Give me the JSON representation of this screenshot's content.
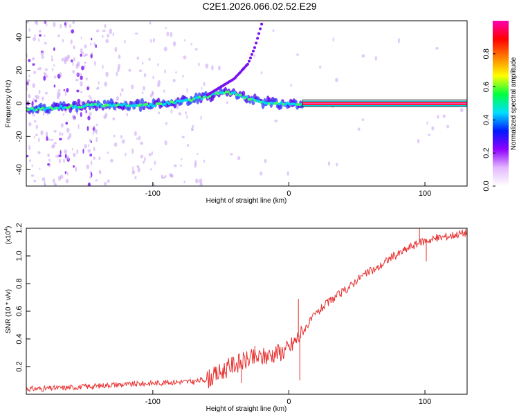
{
  "title": "C2E1.2026.066.02.52.E29",
  "chart_data": [
    {
      "type": "heatmap",
      "xlabel": "Height of straight line (km)",
      "ylabel": "Frequency (Hz)",
      "xlim": [
        -193,
        131
      ],
      "ylim": [
        -50,
        50
      ],
      "xticks": [
        -100,
        0,
        100
      ],
      "xtick_labels": [
        "-100",
        "0",
        "100"
      ],
      "yticks": [
        -40,
        -20,
        0,
        20,
        40
      ],
      "ytick_labels": [
        "-40",
        "-20",
        "0",
        "20",
        "40"
      ],
      "ridge": {
        "x": [
          -193,
          -180,
          -160,
          -140,
          -120,
          -100,
          -80,
          -60,
          -50,
          -40,
          -30,
          -20,
          -10,
          0,
          10,
          131
        ],
        "y": [
          -4,
          -3,
          -2,
          -1,
          -1,
          -1,
          1,
          4,
          7,
          6,
          3,
          1,
          0,
          0,
          0,
          0
        ]
      },
      "branch": {
        "x": [
          -60,
          -50,
          -40,
          -30,
          -25,
          -20
        ],
        "y": [
          5,
          10,
          15,
          24,
          34,
          48
        ]
      },
      "colorbar": {
        "label": "Normalized spectral amplitude",
        "ticks": [
          0,
          0.2,
          0.4,
          0.6,
          0.8
        ],
        "tick_labels": [
          "0.0",
          "0.2",
          "0.4",
          "0.6",
          "0.8"
        ],
        "range": [
          0,
          1
        ],
        "colors": [
          "#ffffff",
          "#e4b8ff",
          "#9000ff",
          "#0018ff",
          "#00e0ff",
          "#00ff40",
          "#ffff00",
          "#ff8000",
          "#ff0000",
          "#ff00b0"
        ]
      }
    },
    {
      "type": "line",
      "xlabel": "Height of straight line (km)",
      "ylabel": "SNR (10 * v/v)",
      "scale_label": "(x10",
      "scale_exponent": "4",
      "scale_close": ")",
      "xlim": [
        -193,
        131
      ],
      "ylim": [
        0,
        1.2
      ],
      "xticks": [
        -100,
        0,
        100
      ],
      "xtick_labels": [
        "-100",
        "0",
        "100"
      ],
      "yticks": [
        0.2,
        0.4,
        0.6,
        0.8,
        1.0,
        1.2
      ],
      "ytick_labels": [
        "0.2",
        "0.4",
        "0.6",
        "0.8",
        "1.0",
        "1.2"
      ],
      "line_color": "#e83030",
      "series": [
        {
          "name": "SNR",
          "x": [
            -193,
            -180,
            -160,
            -140,
            -130,
            -120,
            -100,
            -80,
            -70,
            -60,
            -55,
            -50,
            -45,
            -40,
            -35,
            -30,
            -25,
            -20,
            -15,
            -10,
            -5,
            0,
            5,
            10,
            15,
            20,
            25,
            30,
            35,
            40,
            45,
            50,
            55,
            60,
            65,
            70,
            75,
            80,
            85,
            90,
            95,
            100,
            105,
            110,
            115,
            120,
            125,
            131
          ],
          "y": [
            0.04,
            0.04,
            0.05,
            0.06,
            0.07,
            0.07,
            0.08,
            0.09,
            0.09,
            0.11,
            0.13,
            0.16,
            0.19,
            0.22,
            0.23,
            0.25,
            0.26,
            0.27,
            0.28,
            0.3,
            0.31,
            0.33,
            0.39,
            0.45,
            0.52,
            0.58,
            0.63,
            0.67,
            0.71,
            0.74,
            0.78,
            0.83,
            0.86,
            0.89,
            0.91,
            0.95,
            0.99,
            1.01,
            1.04,
            1.07,
            1.09,
            1.11,
            1.12,
            1.13,
            1.14,
            1.15,
            1.16,
            1.17
          ]
        }
      ],
      "spikes": [
        {
          "x": 7,
          "y": 0.69
        },
        {
          "x": 8,
          "y": 0.1
        },
        {
          "x": -25,
          "y": 0.35
        },
        {
          "x": -35,
          "y": 0.08
        },
        {
          "x": 101,
          "y": 0.96
        },
        {
          "x": 96,
          "y": 1.2
        }
      ]
    }
  ]
}
